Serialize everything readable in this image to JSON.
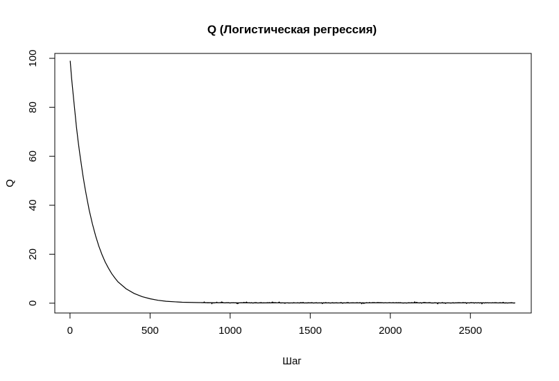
{
  "chart_data": {
    "type": "line",
    "title": "Q (Логистическая регрессия)",
    "xlabel": "Шаг",
    "ylabel": "Q",
    "xlim": [
      -95,
      2880
    ],
    "ylim": [
      -4,
      102
    ],
    "x_ticks": [
      0,
      500,
      1000,
      1500,
      2000,
      2500
    ],
    "x_tick_labels": [
      "0",
      "500",
      "1000",
      "1500",
      "2000",
      "2500"
    ],
    "y_ticks": [
      0,
      20,
      40,
      60,
      80,
      100
    ],
    "y_tick_labels": [
      "0",
      "20",
      "40",
      "60",
      "80",
      "100"
    ],
    "grid": false,
    "line_color": "#000000",
    "series": [
      {
        "x": [
          1,
          10,
          20,
          30,
          40,
          50,
          60,
          70,
          80,
          90,
          100,
          120,
          140,
          160,
          180,
          200,
          220,
          240,
          260,
          280,
          300,
          350,
          400,
          450,
          500,
          550,
          600,
          700,
          800,
          900,
          1000,
          1100,
          1200,
          1300,
          1400,
          1500,
          1600,
          1700,
          1800,
          1900,
          2000,
          2100,
          2200,
          2300,
          2400,
          2500,
          2600,
          2700,
          2780
        ],
        "values": [
          99.0,
          92.0,
          85.0,
          78.5,
          72.0,
          66.5,
          61.5,
          57.0,
          52.5,
          48.5,
          44.8,
          38.0,
          32.3,
          27.5,
          23.3,
          19.8,
          16.8,
          14.3,
          12.1,
          10.3,
          8.7,
          5.9,
          4.0,
          2.7,
          1.8,
          1.2,
          0.8,
          0.4,
          0.25,
          0.2,
          0.15,
          0.15,
          0.12,
          0.15,
          0.12,
          0.12,
          0.1,
          0.12,
          0.12,
          0.15,
          0.15,
          0.12,
          0.15,
          0.12,
          0.12,
          0.15,
          0.15,
          0.12,
          0.12
        ]
      }
    ]
  }
}
